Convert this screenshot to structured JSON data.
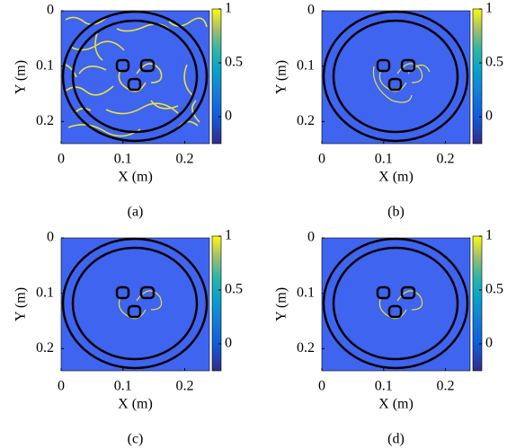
{
  "chart_data": [
    {
      "type": "image",
      "caption": "(a)",
      "xlabel": "X (m)",
      "ylabel": "Y (m)",
      "xlim": [
        0,
        0.24
      ],
      "ylim": [
        0,
        0.24
      ],
      "xticks": [
        0,
        0.1,
        0.2
      ],
      "yticks": [
        0,
        0.1,
        0.2
      ],
      "clim": [
        -0.25,
        1
      ],
      "cticks": [
        0,
        0.5,
        1
      ],
      "background_color": "#3f64ef",
      "crack_color": "#e8e23a"
    },
    {
      "type": "image",
      "caption": "(b)",
      "xlabel": "X (m)",
      "ylabel": "Y (m)",
      "xlim": [
        0,
        0.24
      ],
      "ylim": [
        0,
        0.24
      ],
      "xticks": [
        0,
        0.1,
        0.2
      ],
      "yticks": [
        0,
        0.1,
        0.2
      ],
      "clim": [
        -0.25,
        1
      ],
      "cticks": [
        0,
        0.5,
        1
      ],
      "background_color": "#3f64ef",
      "crack_color": "#e8e23a"
    },
    {
      "type": "image",
      "caption": "(c)",
      "xlabel": "X (m)",
      "ylabel": "Y (m)",
      "xlim": [
        0,
        0.24
      ],
      "ylim": [
        0,
        0.24
      ],
      "xticks": [
        0,
        0.1,
        0.2
      ],
      "yticks": [
        0,
        0.1,
        0.2
      ],
      "clim": [
        -0.25,
        1
      ],
      "cticks": [
        0,
        0.5,
        1
      ],
      "background_color": "#3f64ef",
      "crack_color": "#e8e23a"
    },
    {
      "type": "image",
      "caption": "(d)",
      "xlabel": "X (m)",
      "ylabel": "Y (m)",
      "xlim": [
        0,
        0.24
      ],
      "ylim": [
        0,
        0.24
      ],
      "xticks": [
        0,
        0.1,
        0.2
      ],
      "yticks": [
        0,
        0.1,
        0.2
      ],
      "clim": [
        -0.25,
        1
      ],
      "cticks": [
        0,
        0.5,
        1
      ],
      "background_color": "#3f64ef",
      "crack_color": "#e8e23a"
    }
  ]
}
